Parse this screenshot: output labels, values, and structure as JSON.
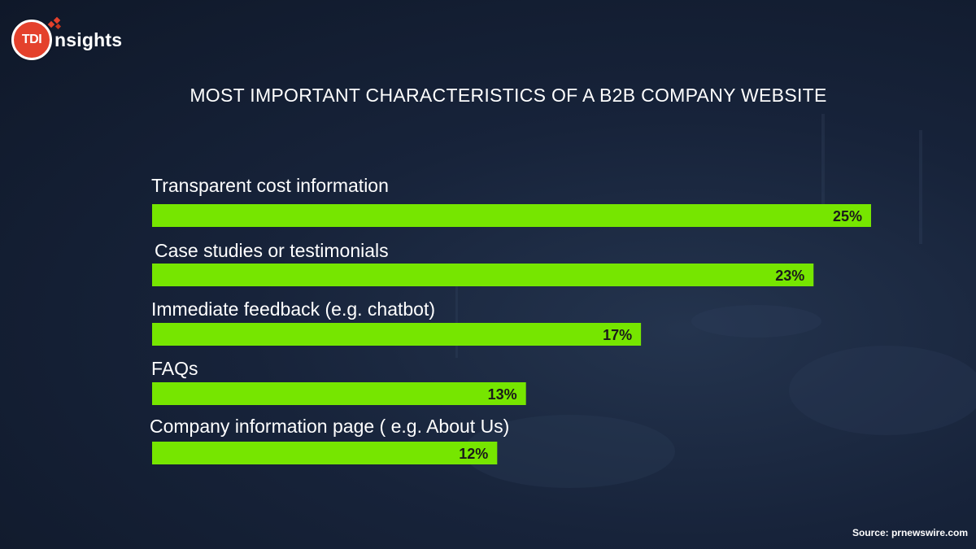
{
  "logo": {
    "badge_text": "TDI",
    "word_text": "nsights",
    "badge_color": "#e4412c"
  },
  "chart_data": {
    "type": "bar",
    "orientation": "horizontal",
    "title": "MOST IMPORTANT CHARACTERISTICS OF A B2B COMPANY WEBSITE",
    "categories": [
      "Transparent cost information",
      "Case studies or testimonials",
      "Immediate feedback (e.g. chatbot)",
      "FAQs",
      "Company information page ( e.g. About Us)"
    ],
    "values": [
      25,
      23,
      17,
      13,
      12
    ],
    "value_labels": [
      "25%",
      "23%",
      "17%",
      "13%",
      "12%"
    ],
    "unit": "%",
    "bar_color": "#76e600",
    "label_color": "#ffffff",
    "value_label_color": "#1a1a1a",
    "grid": false,
    "legend": "none"
  },
  "source": "Source: prnewswire.com"
}
